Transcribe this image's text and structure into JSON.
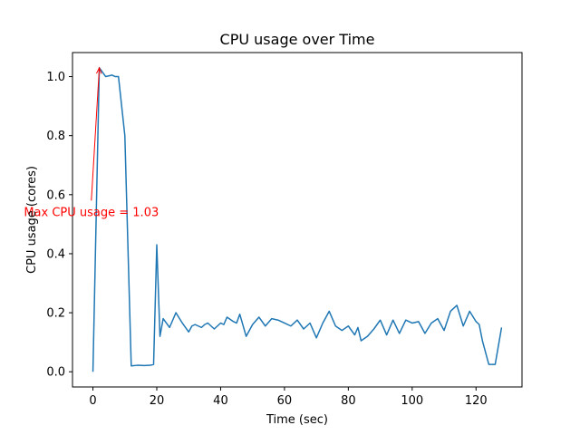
{
  "chart_data": {
    "type": "line",
    "title": "CPU usage over Time",
    "xlabel": "Time (sec)",
    "ylabel": "CPU usage (cores)",
    "xlim": [
      -6.4,
      134.4
    ],
    "ylim": [
      -0.0515,
      1.0815
    ],
    "xticks": [
      0,
      20,
      40,
      60,
      80,
      100,
      120
    ],
    "yticks": [
      0.0,
      0.2,
      0.4,
      0.6,
      0.8,
      1.0
    ],
    "ytick_labels": [
      "0.0",
      "0.2",
      "0.4",
      "0.6",
      "0.8",
      "1.0"
    ],
    "grid": false,
    "series": [
      {
        "color": "#1f77b4",
        "x": [
          0,
          2,
          4,
          6,
          7,
          8,
          10,
          12,
          14,
          16,
          18,
          19,
          20,
          21,
          22,
          24,
          26,
          28,
          30,
          31,
          32,
          34,
          35,
          36,
          38,
          40,
          41,
          42,
          44,
          45,
          46,
          48,
          50,
          52,
          54,
          56,
          58,
          60,
          62,
          64,
          66,
          68,
          70,
          72,
          74,
          76,
          78,
          80,
          82,
          83,
          84,
          86,
          88,
          90,
          92,
          94,
          96,
          98,
          100,
          102,
          104,
          106,
          108,
          110,
          112,
          114,
          116,
          118,
          120,
          121,
          122,
          124,
          126,
          128
        ],
        "y": [
          0.0,
          1.03,
          1.0,
          1.005,
          1.0,
          1.0,
          0.8,
          0.02,
          0.022,
          0.021,
          0.022,
          0.025,
          0.43,
          0.12,
          0.18,
          0.15,
          0.2,
          0.165,
          0.135,
          0.155,
          0.16,
          0.15,
          0.16,
          0.165,
          0.145,
          0.165,
          0.16,
          0.185,
          0.17,
          0.165,
          0.195,
          0.12,
          0.16,
          0.185,
          0.155,
          0.18,
          0.175,
          0.165,
          0.155,
          0.175,
          0.145,
          0.165,
          0.115,
          0.165,
          0.205,
          0.155,
          0.14,
          0.155,
          0.125,
          0.15,
          0.105,
          0.12,
          0.145,
          0.175,
          0.125,
          0.175,
          0.13,
          0.175,
          0.165,
          0.17,
          0.13,
          0.165,
          0.18,
          0.14,
          0.205,
          0.225,
          0.155,
          0.205,
          0.17,
          0.16,
          0.105,
          0.025,
          0.025,
          0.15
        ]
      }
    ],
    "annotation": {
      "text": "Max CPU usage = 1.03",
      "color": "#ff0000",
      "xy": [
        2,
        1.03
      ],
      "xytext": [
        -0.5,
        0.58
      ]
    }
  }
}
